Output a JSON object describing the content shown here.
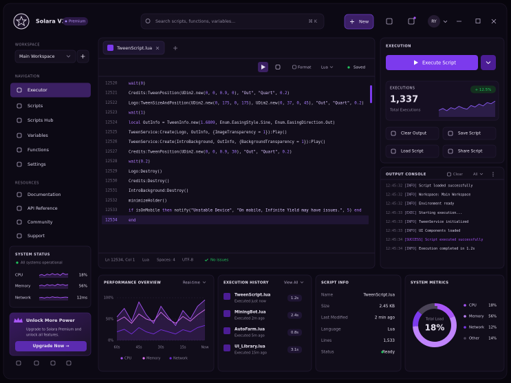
{
  "app": {
    "name": "Solara V3",
    "badge": "Premium",
    "search_placeholder": "Search scripts, functions, variables...",
    "shortcut": "⌘ K",
    "new_button": "New",
    "user_initials": "RY"
  },
  "sidebar": {
    "workspace_heading": "WORKSPACE",
    "workspace": "Main Workspace",
    "navigation_heading": "NAVIGATION",
    "navigation": [
      "Executor",
      "Scripts",
      "Scripts Hub",
      "Variables",
      "Functions",
      "Settings"
    ],
    "active": 0,
    "resources_heading": "RESOURCES",
    "resources": [
      "Documentation",
      "API Reference",
      "Community",
      "Support"
    ],
    "system_status": {
      "title": "SYSTEM STATUS",
      "status": "All systems operational",
      "trend_ylim": [
        0,
        100
      ],
      "metrics": [
        {
          "label": "CPU",
          "value": "18%",
          "trend": [
            40,
            55,
            35,
            60,
            45,
            70,
            50,
            65,
            40,
            75,
            55,
            60
          ]
        },
        {
          "label": "Memory",
          "value": "56%",
          "trend": [
            50,
            60,
            45,
            70,
            55,
            65,
            50,
            75,
            60,
            70,
            55,
            65
          ]
        },
        {
          "label": "Network",
          "value": "12ms",
          "trend": [
            45,
            50,
            40,
            55,
            45,
            60,
            50,
            55,
            45,
            50,
            55,
            50
          ]
        }
      ]
    },
    "upgrade": {
      "title": "Unlock More Power",
      "text": [
        "Upgrade to Solara Premium and",
        "unlock all features."
      ],
      "button": "Upgrade Now →"
    }
  },
  "editor": {
    "tab": "TweenScript.lua",
    "format": "Format",
    "language": "Lua",
    "saved": "Saved",
    "current": 14,
    "lines": [
      {
        "number": 12520,
        "code": "wait(0)"
      },
      {
        "number": 12521,
        "code": "Credits:TweenPosition(UDim2.new(0, 0, 0.9, 0), \"Out\", \"Quart\", 0.2)"
      },
      {
        "number": 12522,
        "code": "Logo:TweenSizeAndPosition(UDim2.new(0, 175, 0, 175), UDim2.new(0, 37, 0, 45), \"Out\", \"Quart\", 0.2)"
      },
      {
        "number": 12523,
        "code": "wait(1)"
      },
      {
        "number": 12524,
        "code": "local OutInfo = TweenInfo.new(1.6809, Enum.EasingStyle.Sine, Enum.EasingDirection.Out)"
      },
      {
        "number": 12525,
        "code": "TweenService:Create(Logo, OutInfo, {ImageTransparency = 1}):Play()"
      },
      {
        "number": 12526,
        "code": "TweenService:Create(IntroBackground, OutInfo, {BackgroundTransparency = 1}):Play()"
      },
      {
        "number": 12527,
        "code": "Credits:TweenPosition(UDim2.new(0, 0, 0.9, 30), \"Out\", \"Quart\", 0.2)"
      },
      {
        "number": 12528,
        "code": "wait(0.2)"
      },
      {
        "number": 12529,
        "code": "Logo:Destroy()"
      },
      {
        "number": 12530,
        "code": "Credits:Destroy()"
      },
      {
        "number": 12531,
        "code": "IntroBackground:Destroy()"
      },
      {
        "number": 12532,
        "code": "minimizeHolder()"
      },
      {
        "number": 12533,
        "code": "if isOnMobile then notify(\"Unstable Device\", \"On mobile, Infinite Yield may have issues.\", 5) end"
      },
      {
        "number": 12534,
        "code": "end"
      }
    ],
    "status": [
      "Ln 12534, Col 1",
      "Lua",
      "Spaces: 4",
      "UTF-8"
    ],
    "issues": "No issues"
  },
  "execution": {
    "heading": "EXECUTION",
    "button": "Execute Script",
    "executions_label": "EXECUTIONS",
    "change": "+ 12.5%",
    "count": "1,337",
    "count_label": "Total Executions",
    "trend_ylim": [
      0,
      100
    ],
    "trend": [
      30,
      38,
      28,
      42,
      36,
      48,
      40,
      35,
      52,
      45,
      58,
      50,
      65,
      60,
      72
    ],
    "actions": [
      "Clear Output",
      "Save Script",
      "Load Script",
      "Share Script"
    ]
  },
  "console": {
    "title": "OUTPUT CONSOLE",
    "clear": "Clear",
    "filter": "All",
    "lines": [
      {
        "time": "12:45:32",
        "tag": "[INFO]",
        "message": "Script loaded successfully"
      },
      {
        "time": "12:45:32",
        "tag": "[INFO]",
        "message": "Workspace: Main Workspace"
      },
      {
        "time": "12:45:32",
        "tag": "[INFO]",
        "message": "Environment ready"
      },
      {
        "time": "12:45:33",
        "tag": "[EXEC]",
        "message": "Starting execution..."
      },
      {
        "time": "12:45:33",
        "tag": "[INFO]",
        "message": "TweenService initialized"
      },
      {
        "time": "12:45:33",
        "tag": "[INFO]",
        "message": "UI Components loaded"
      },
      {
        "time": "12:45:34",
        "tag": "[SUCCESS]",
        "message": "Script executed successfully"
      },
      {
        "time": "12:45:34",
        "tag": "[INFO]",
        "message": "Execution completed in 1.2s"
      }
    ]
  },
  "performance": {
    "type": "line",
    "title": "PERFORMANCE OVERVIEW",
    "range": "Real-time",
    "ylim": [
      0,
      100
    ],
    "yticks": [
      {
        "value": 100,
        "label": "100%"
      },
      {
        "value": 50,
        "label": "50%"
      },
      {
        "value": 0,
        "label": "0%"
      }
    ],
    "x_labels": [
      "60s",
      "45s",
      "30s",
      "15s",
      "Now"
    ],
    "series": [
      {
        "name": "CPU",
        "color": "#a855f7",
        "values": [
          55,
          75,
          45,
          90,
          60,
          40,
          80,
          55,
          35,
          70,
          50,
          80,
          95
        ]
      },
      {
        "name": "Memory",
        "color": "#e879f9",
        "values": [
          45,
          55,
          40,
          62,
          50,
          45,
          66,
          50,
          40,
          56,
          45,
          60,
          72
        ]
      },
      {
        "name": "Network",
        "color": "#6d28d9",
        "values": [
          20,
          26,
          15,
          30,
          20,
          15,
          25,
          20,
          15,
          25,
          20,
          30,
          35
        ]
      }
    ]
  },
  "history": {
    "title": "EXECUTION HISTORY",
    "view_all": "View All",
    "items": [
      {
        "name": "TweenScript.lua",
        "time": "Executed just now",
        "duration": "1.2s"
      },
      {
        "name": "MiningBot.lua",
        "time": "Executed 2m ago",
        "duration": "2.4s"
      },
      {
        "name": "AutoFarm.lua",
        "time": "Executed 5m ago",
        "duration": "0.8s"
      },
      {
        "name": "UI_Library.lua",
        "time": "Executed 15m ago",
        "duration": "3.1s"
      }
    ]
  },
  "script_info": {
    "title": "SCRIPT INFO",
    "rows": [
      [
        "Name",
        "TweenScript.lua"
      ],
      [
        "Size",
        "2.45 KB"
      ],
      [
        "Last Modified",
        "2 min ago"
      ],
      [
        "Language",
        "Lua"
      ],
      [
        "Lines",
        "1,533"
      ],
      [
        "Status",
        "Ready"
      ]
    ]
  },
  "metrics": {
    "type": "pie",
    "title": "SYSTEM METRICS",
    "center_label": "Total Load",
    "center_value": "18%",
    "items": [
      {
        "name": "CPU",
        "value": 18,
        "value_label": "18%",
        "color": "#a855f7"
      },
      {
        "name": "Memory",
        "value": 56,
        "value_label": "56%",
        "color": "#c084fc"
      },
      {
        "name": "Network",
        "value": 12,
        "value_label": "12%",
        "color": "#7c3aed"
      },
      {
        "name": "Other",
        "value": 14,
        "value_label": "14%",
        "color": "#4b4458"
      }
    ]
  }
}
